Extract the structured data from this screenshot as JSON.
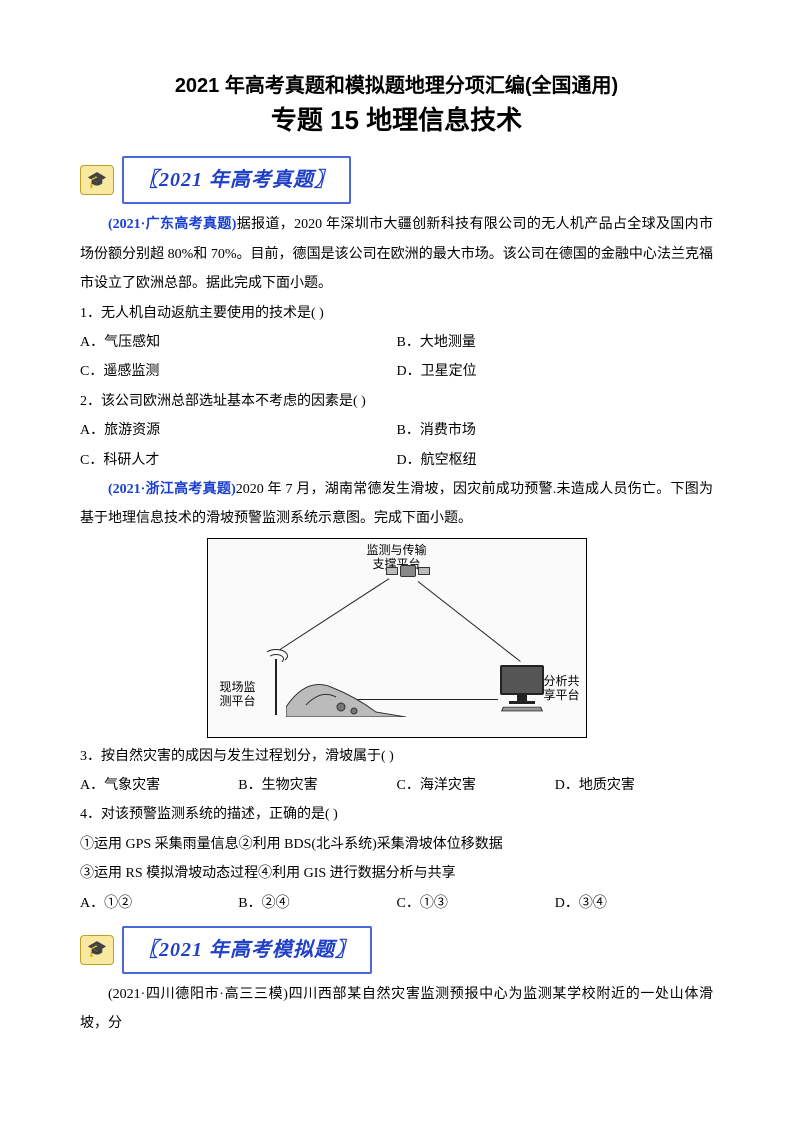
{
  "header": {
    "title_main": "2021 年高考真题和模拟题地理分项汇编(全国通用)",
    "title_sub": "专题 15  地理信息技术"
  },
  "banner1": {
    "text": "〖2021 年高考真题〗"
  },
  "passage1": {
    "source": "(2021·广东高考真题)",
    "text": "据报道，2020 年深圳市大疆创新科技有限公司的无人机产品占全球及国内市场份额分别超 80%和 70%。目前，德国是该公司在欧洲的最大市场。该公司在德国的金融中心法兰克福市设立了欧洲总部。据此完成下面小题。"
  },
  "q1": {
    "stem": "1．无人机自动返航主要使用的技术是(      )",
    "opts": {
      "A": "A．气压感知",
      "B": "B．大地测量",
      "C": "C．遥感监测",
      "D": "D．卫星定位"
    }
  },
  "q2": {
    "stem": "2．该公司欧洲总部选址基本不考虑的因素是(      )",
    "opts": {
      "A": "A．旅游资源",
      "B": "B．消费市场",
      "C": "C．科研人才",
      "D": "D．航空枢纽"
    }
  },
  "passage2": {
    "source": "(2021·浙江高考真题)",
    "text": "2020 年 7 月，湖南常德发生滑坡，因灾前成功预警.未造成人员伤亡。下图为基于地理信息技术的滑坡预警监测系统示意图。完成下面小题。"
  },
  "diagram": {
    "top_label": "监测与传输\n支撑平台",
    "left_label": "现场监\n测平台",
    "right_label": "分析共\n享平台"
  },
  "q3": {
    "stem": "3．按自然灾害的成因与发生过程划分，滑坡属于(      )",
    "opts": {
      "A": "A．气象灾害",
      "B": "B．生物灾害",
      "C": "C．海洋灾害",
      "D": "D．地质灾害"
    }
  },
  "q4": {
    "stem": "4．对该预警监测系统的描述，正确的是(      )",
    "line1": "①运用 GPS 采集雨量信息②利用 BDS(北斗系统)采集滑坡体位移数据",
    "line2": "③运用 RS 模拟滑坡动态过程④利用 GIS 进行数据分析与共享",
    "opts": {
      "A": "A．①②",
      "B": "B．②④",
      "C": "C．①③",
      "D": "D．③④"
    }
  },
  "banner2": {
    "text": "〖2021  年高考模拟题〗"
  },
  "passage3": {
    "source": "(2021·四川德阳市·高三三模)",
    "text": "四川西部某自然灾害监测预报中心为监测某学校附近的一处山体滑坡，分"
  },
  "colors": {
    "link": "#1a3fd0",
    "banner_border": "#4a68d8",
    "banner_text": "#2040c8"
  }
}
